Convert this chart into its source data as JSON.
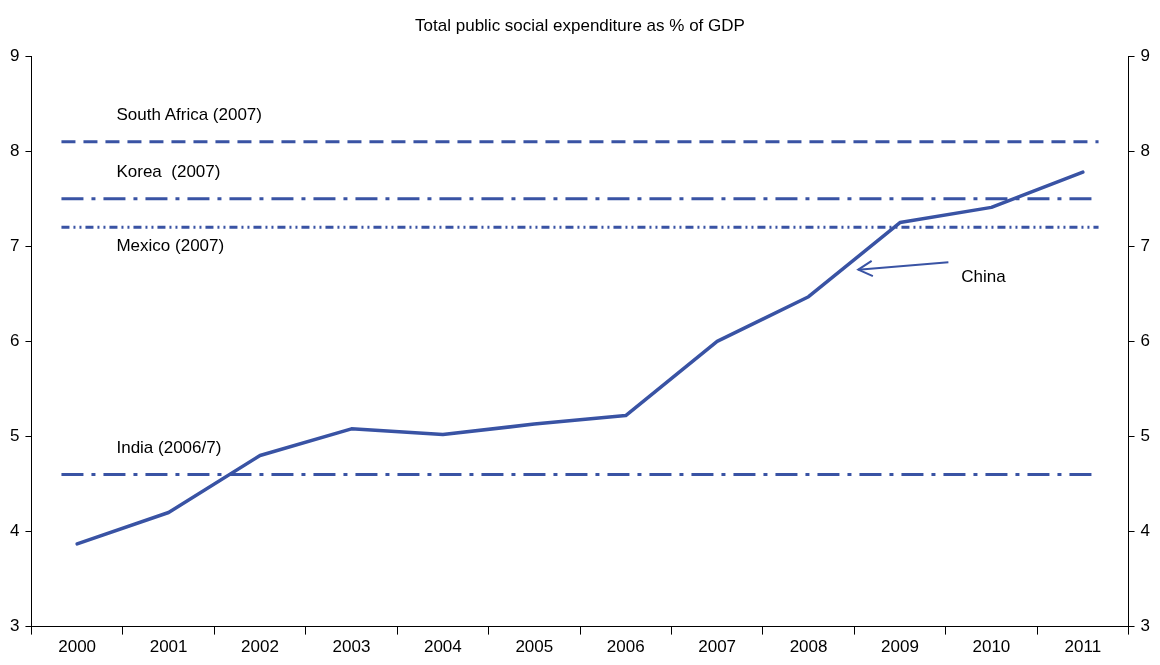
{
  "chart_data": {
    "type": "line",
    "title": "Total public social expenditure as % of GDP",
    "categories": [
      "2000",
      "2001",
      "2002",
      "2003",
      "2004",
      "2005",
      "2006",
      "2007",
      "2008",
      "2009",
      "2010",
      "2011"
    ],
    "series": [
      {
        "color": "#3953a4",
        "values": [
          3.87,
          4.2,
          4.8,
          5.08,
          5.02,
          5.13,
          5.22,
          6.0,
          6.47,
          7.25,
          7.41,
          7.78
        ]
      }
    ],
    "ylim": [
      3,
      9
    ],
    "yticks": [
      3,
      4,
      5,
      6,
      7,
      8,
      9
    ],
    "y2lim": [
      3,
      9
    ],
    "y2ticks": [
      3,
      4,
      5,
      6,
      7,
      8,
      9
    ],
    "ref_lines": [
      {
        "axis": "y",
        "value": 8.1,
        "label": "South Africa (2007)",
        "color": "#3953a4",
        "line_style": "dashed"
      },
      {
        "axis": "y",
        "value": 7.5,
        "label": "Korea  (2007)",
        "color": "#3953a4",
        "line_style": "dashdot"
      },
      {
        "axis": "y",
        "value": 7.2,
        "label": "Mexico (2007)",
        "color": "#3953a4",
        "line_style": "dashdotdot"
      },
      {
        "axis": "y",
        "value": 4.6,
        "label": "India (2006/7)",
        "color": "#3953a4",
        "line_style": "dashdot"
      }
    ],
    "annotations": [
      "China"
    ],
    "grid": false,
    "legend": false,
    "marker": "none",
    "line_style": "solid"
  }
}
